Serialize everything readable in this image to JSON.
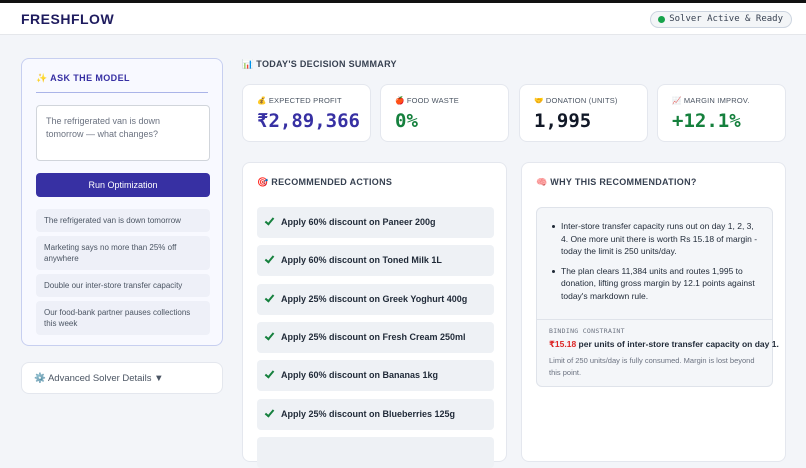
{
  "header": {
    "logo": "FRESHFLOW",
    "status": "Solver Active & Ready"
  },
  "ask": {
    "title": "✨ ASK THE MODEL",
    "placeholder": "The refrigerated van is down tomorrow — what changes?",
    "button": "Run Optimization",
    "suggestions": [
      "The refrigerated van is down tomorrow",
      "Marketing says no more than 25% off anywhere",
      "Double our inter-store transfer capacity",
      "Our food-bank partner pauses collections this week"
    ]
  },
  "advanced": "⚙️ Advanced Solver Details ▼",
  "summary": {
    "title": "📊 TODAY'S DECISION SUMMARY",
    "kpis": [
      {
        "label": "💰 EXPECTED PROFIT",
        "value": "₹2,89,366"
      },
      {
        "label": "🍎 FOOD WASTE",
        "value": "0%"
      },
      {
        "label": "🤝 DONATION (UNITS)",
        "value": "1,995"
      },
      {
        "label": "📈 MARGIN IMPROV.",
        "value": "+12.1%"
      }
    ]
  },
  "actions": {
    "title": "🎯 RECOMMENDED ACTIONS",
    "items": [
      "Apply 60% discount on Paneer 200g",
      "Apply 60% discount on Toned Milk 1L",
      "Apply 25% discount on Greek Yoghurt 400g",
      "Apply 25% discount on Fresh Cream 250ml",
      "Apply 60% discount on Bananas 1kg",
      "Apply 25% discount on Blueberries 125g"
    ]
  },
  "why": {
    "title": "🧠 WHY THIS RECOMMENDATION?",
    "bullets": [
      "Inter-store transfer capacity runs out on day 1, 2, 3, 4. One more unit there is worth Rs 15.18 of margin - today the limit is 250 units/day.",
      "The plan clears 11,384 units and routes 1,995 to donation, lifting gross margin by 12.1 points against today's markdown rule."
    ],
    "constraint_label": "BINDING CONSTRAINT",
    "constraint_value": "₹15.18",
    "constraint_text": " per units of inter-store transfer capacity on day 1.",
    "note": "Limit of 250 units/day is fully consumed. Margin is lost beyond this point."
  }
}
